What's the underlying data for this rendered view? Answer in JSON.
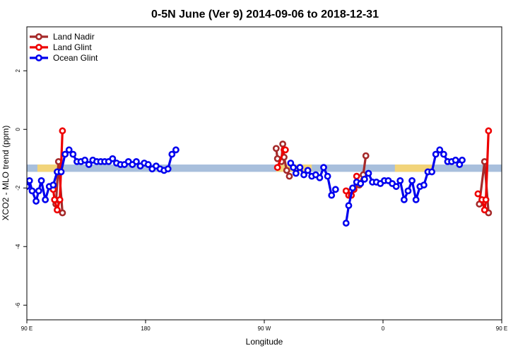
{
  "chart_data": {
    "type": "line",
    "title": "0-5N June (Ver 9)   2014-09-06 to 2018-12-31",
    "xlabel": "Longitude",
    "ylabel": "XCO2 - MLO trend (ppm)",
    "xlim": [
      90,
      450
    ],
    "ylim": [
      -6.5,
      3.5
    ],
    "x_ticks": [
      {
        "value": 90,
        "label": "90 E"
      },
      {
        "value": 180,
        "label": "180"
      },
      {
        "value": 270,
        "label": "90 W"
      },
      {
        "value": 360,
        "label": "0"
      },
      {
        "value": 450,
        "label": "90 E"
      },
      {
        "value": 540,
        "label": "180"
      }
    ],
    "y_ticks": [
      {
        "value": 2,
        "label": "2"
      },
      {
        "value": 0,
        "label": "0"
      },
      {
        "value": -2,
        "label": "-2"
      },
      {
        "value": -4,
        "label": "-4"
      },
      {
        "value": -6,
        "label": "-6"
      }
    ],
    "grid": false,
    "legend_position": "top-left",
    "band": {
      "y_range": [
        -1.45,
        -1.2
      ],
      "color": "#a8bfdc",
      "land_color": "#f2d47a",
      "land_segments": [
        [
          98,
          118
        ],
        [
          279,
          306
        ],
        [
          369,
          398
        ],
        [
          473,
          489
        ]
      ]
    },
    "series": [
      {
        "name": "Land Nadir",
        "color": "#a52a2a",
        "x": [
          112,
          115,
          118
        ],
        "segments": [
          [
            [
              112,
              -2.55
            ],
            [
              114,
              -1.1
            ],
            [
              117,
              -2.85
            ]
          ],
          [
            [
              279,
              -0.65
            ],
            [
              280,
              -1.0
            ],
            [
              283,
              -1.1
            ],
            [
              284,
              -0.5
            ],
            [
              285,
              -0.95
            ],
            [
              287,
              -1.4
            ],
            [
              289,
              -1.6
            ]
          ],
          [
            [
              336,
              -2.1
            ],
            [
              342,
              -1.9
            ],
            [
              345,
              -1.55
            ],
            [
              347,
              -0.9
            ]
          ],
          [
            [
              433,
              -2.55
            ],
            [
              437,
              -1.1
            ],
            [
              440,
              -2.85
            ]
          ]
        ]
      },
      {
        "name": "Land Glint",
        "color": "#ee0000",
        "segments": [
          [
            [
              110,
              -2.05
            ],
            [
              111,
              -2.4
            ],
            [
              113,
              -2.75
            ],
            [
              115,
              -2.4
            ],
            [
              117,
              -0.05
            ]
          ],
          [
            [
              280,
              -1.3
            ],
            [
              285,
              -0.7
            ],
            [
              286,
              -0.7
            ]
          ],
          [
            [
              332,
              -2.1
            ],
            [
              334,
              -2.25
            ],
            [
              336,
              -2.25
            ],
            [
              338,
              -2.05
            ],
            [
              340,
              -1.6
            ]
          ],
          [
            [
              432,
              -2.2
            ],
            [
              435,
              -2.4
            ],
            [
              437,
              -2.75
            ],
            [
              438,
              -2.4
            ],
            [
              440,
              -0.05
            ]
          ]
        ]
      },
      {
        "name": "Ocean Glint",
        "color": "#0000ee",
        "segments": [
          [
            [
              90,
              -1.95
            ],
            [
              92,
              -1.75
            ],
            [
              94,
              -2.1
            ],
            [
              97,
              -2.45
            ],
            [
              99,
              -2.1
            ],
            [
              101,
              -1.75
            ],
            [
              104,
              -2.4
            ],
            [
              107,
              -1.95
            ],
            [
              110,
              -1.9
            ],
            [
              113,
              -1.45
            ],
            [
              116,
              -1.45
            ],
            [
              119,
              -0.85
            ],
            [
              122,
              -0.7
            ],
            [
              125,
              -0.85
            ],
            [
              128,
              -1.1
            ],
            [
              131,
              -1.1
            ],
            [
              134,
              -1.05
            ],
            [
              137,
              -1.2
            ],
            [
              140,
              -1.05
            ],
            [
              143,
              -1.1
            ],
            [
              146,
              -1.1
            ],
            [
              149,
              -1.1
            ],
            [
              152,
              -1.1
            ],
            [
              155,
              -1.0
            ],
            [
              158,
              -1.15
            ],
            [
              161,
              -1.2
            ],
            [
              164,
              -1.2
            ],
            [
              167,
              -1.1
            ],
            [
              170,
              -1.2
            ],
            [
              173,
              -1.1
            ],
            [
              176,
              -1.25
            ],
            [
              179,
              -1.15
            ],
            [
              182,
              -1.2
            ],
            [
              185,
              -1.35
            ],
            [
              188,
              -1.25
            ],
            [
              191,
              -1.35
            ],
            [
              194,
              -1.4
            ],
            [
              197,
              -1.35
            ],
            [
              200,
              -0.85
            ],
            [
              203,
              -0.7
            ]
          ],
          [
            [
              290,
              -1.15
            ],
            [
              292,
              -1.3
            ],
            [
              294,
              -1.5
            ],
            [
              297,
              -1.3
            ],
            [
              300,
              -1.55
            ],
            [
              303,
              -1.4
            ],
            [
              306,
              -1.6
            ],
            [
              309,
              -1.55
            ],
            [
              312,
              -1.65
            ],
            [
              315,
              -1.3
            ],
            [
              318,
              -1.6
            ],
            [
              321,
              -2.25
            ],
            [
              324,
              -2.05
            ]
          ],
          [
            [
              332,
              -3.2
            ],
            [
              334,
              -2.6
            ],
            [
              337,
              -2.0
            ],
            [
              340,
              -1.8
            ],
            [
              343,
              -1.85
            ],
            [
              346,
              -1.7
            ],
            [
              349,
              -1.5
            ],
            [
              352,
              -1.8
            ],
            [
              355,
              -1.8
            ],
            [
              358,
              -1.85
            ],
            [
              361,
              -1.75
            ],
            [
              364,
              -1.75
            ],
            [
              367,
              -1.85
            ],
            [
              370,
              -1.95
            ],
            [
              373,
              -1.75
            ],
            [
              376,
              -2.4
            ],
            [
              379,
              -2.1
            ],
            [
              382,
              -1.75
            ],
            [
              385,
              -2.4
            ],
            [
              388,
              -1.95
            ],
            [
              391,
              -1.9
            ],
            [
              394,
              -1.45
            ],
            [
              397,
              -1.45
            ],
            [
              400,
              -0.85
            ],
            [
              403,
              -0.7
            ],
            [
              406,
              -0.85
            ],
            [
              409,
              -1.1
            ],
            [
              412,
              -1.1
            ],
            [
              415,
              -1.05
            ],
            [
              418,
              -1.2
            ],
            [
              420,
              -1.05
            ]
          ]
        ]
      }
    ]
  }
}
